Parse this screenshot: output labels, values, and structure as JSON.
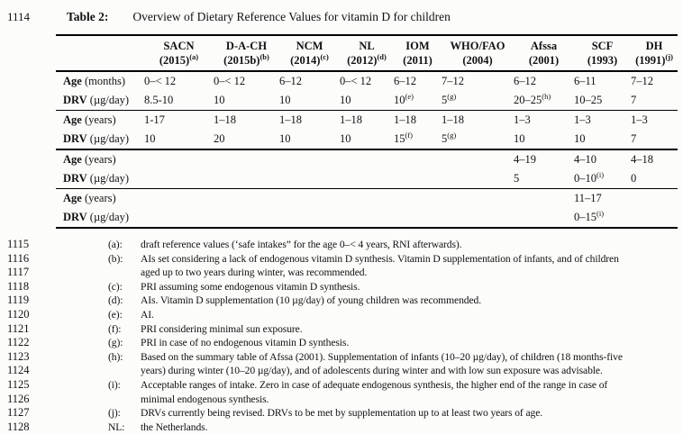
{
  "title": {
    "line_number": "1114",
    "label": "Table 2:",
    "caption": "Overview of Dietary Reference Values for vitamin D for children"
  },
  "table": {
    "columns": [
      {
        "name": "SACN",
        "year": "(2015)",
        "sup": "(a)"
      },
      {
        "name": "D-A-CH",
        "year": "(2015b)",
        "sup": "(b)"
      },
      {
        "name": "NCM",
        "year": "(2014)",
        "sup": "(c)"
      },
      {
        "name": "NL",
        "year": "(2012)",
        "sup": "(d)"
      },
      {
        "name": "IOM",
        "year": "(2011)",
        "sup": ""
      },
      {
        "name": "WHO/FAO",
        "year": "(2004)",
        "sup": ""
      },
      {
        "name": "Afssa",
        "year": "(2001)",
        "sup": ""
      },
      {
        "name": "SCF",
        "year": "(1993)",
        "sup": ""
      },
      {
        "name": "DH",
        "year": "(1991)",
        "sup": "(j)"
      }
    ],
    "groups": [
      {
        "rows": [
          {
            "label": "Age",
            "unit": "(months)",
            "cells": [
              "0–< 12",
              "0–< 12",
              "6–12",
              "0–< 12",
              "6–12",
              "7–12",
              "6–12",
              "6–11",
              "7–12"
            ]
          },
          {
            "label": "DRV",
            "unit": "(µg/day)",
            "cells": [
              "8.5-10",
              "10",
              "10",
              "10",
              "10^(e)",
              "5^(g)",
              "20–25^(h)",
              "10–25",
              "7"
            ]
          }
        ]
      },
      {
        "rows": [
          {
            "label": "Age",
            "unit": "(years)",
            "cells": [
              "1-17",
              "1–18",
              "1–18",
              "1–18",
              "1–18",
              "1–18",
              "1–3",
              "1–3",
              "1–3"
            ]
          },
          {
            "label": "DRV",
            "unit": "(µg/day)",
            "cells": [
              "10",
              "20",
              "10",
              "10",
              "15^(f)",
              "5^(g)",
              "10",
              "10",
              "7"
            ]
          }
        ]
      },
      {
        "rows": [
          {
            "label": "Age",
            "unit": "(years)",
            "cells": [
              "",
              "",
              "",
              "",
              "",
              "",
              "4–19",
              "4–10",
              "4–18"
            ]
          },
          {
            "label": "DRV",
            "unit": "(µg/day)",
            "cells": [
              "",
              "",
              "",
              "",
              "",
              "",
              "5",
              "0–10^(i)",
              "0"
            ]
          }
        ]
      },
      {
        "rows": [
          {
            "label": "Age",
            "unit": "(years)",
            "cells": [
              "",
              "",
              "",
              "",
              "",
              "",
              "",
              "11–17",
              ""
            ]
          },
          {
            "label": "DRV",
            "unit": "(µg/day)",
            "cells": [
              "",
              "",
              "",
              "",
              "",
              "",
              "",
              "0–15^(i)",
              ""
            ]
          }
        ]
      }
    ]
  },
  "footnote_lines": [
    {
      "num": "1115",
      "marker": "(a):",
      "text": "draft reference values (‘safe intakes” for the age 0–< 4 years, RNI afterwards)."
    },
    {
      "num": "1116",
      "marker": "(b):",
      "text": "AIs set considering a lack of endogenous vitamin D synthesis. Vitamin D supplementation of infants, and of children"
    },
    {
      "num": "1117",
      "marker": "",
      "text": "aged up to two years during winter, was recommended."
    },
    {
      "num": "1118",
      "marker": "(c):",
      "text": "PRI assuming some endogenous vitamin D synthesis."
    },
    {
      "num": "1119",
      "marker": "(d):",
      "text": "AIs. Vitamin D supplementation (10 µg/day) of young children was recommended."
    },
    {
      "num": "1120",
      "marker": "(e):",
      "text": "AI."
    },
    {
      "num": "1121",
      "marker": "(f):",
      "text": "PRI considering minimal sun exposure."
    },
    {
      "num": "1122",
      "marker": "(g):",
      "text": "PRI in case of no endogenous vitamin D synthesis."
    },
    {
      "num": "1123",
      "marker": "(h):",
      "text": "Based on the summary table of Afssa (2001). Supplementation of infants (10–20 µg/day), of children (18 months-five"
    },
    {
      "num": "1124",
      "marker": "",
      "text": "years) during winter (10–20 µg/day), and of adolescents during winter and with low sun exposure was advisable."
    },
    {
      "num": "1125",
      "marker": "(i):",
      "text": "Acceptable ranges of intake. Zero in case of adequate endogenous synthesis, the higher end of the range in case of"
    },
    {
      "num": "1126",
      "marker": "",
      "text": "minimal endogenous synthesis."
    },
    {
      "num": "1127",
      "marker": "(j):",
      "text": "DRVs currently being revised. DRVs to be met by supplementation up to at least two years of age."
    },
    {
      "num": "1128",
      "marker": "NL:",
      "text": "the Netherlands."
    }
  ]
}
